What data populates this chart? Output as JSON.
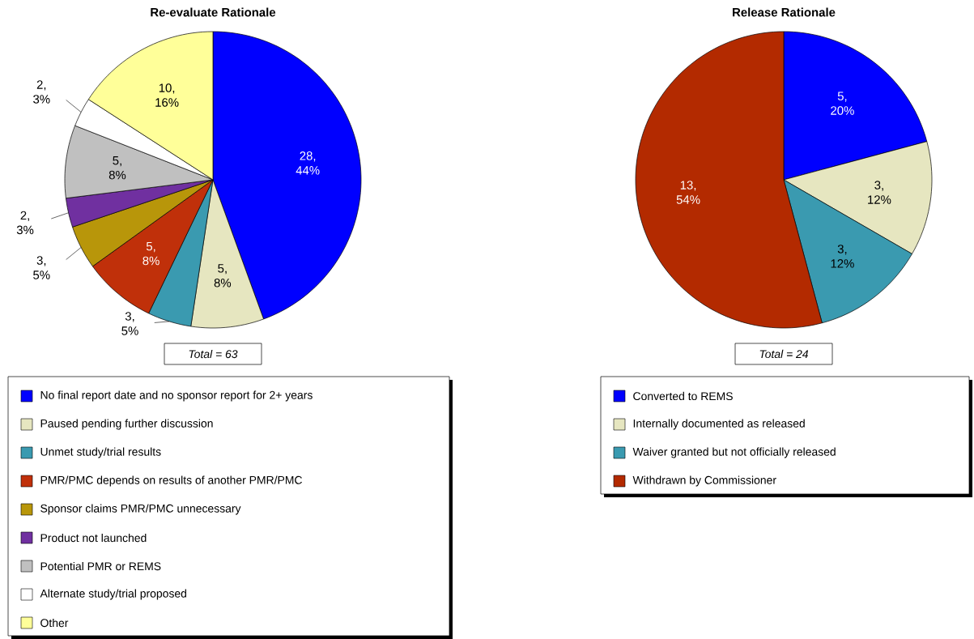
{
  "chart_data": [
    {
      "type": "pie",
      "title": "Re-evaluate Rationale",
      "legend": "bottom",
      "categories": [
        "No final report date and no sponsor report for 2+ years",
        "Paused pending further discussion",
        "Unmet study/trial results",
        "PMR/PMC depends on results of another PMR/PMC",
        "Sponsor claims PMR/PMC unnecessary",
        "Product not launched",
        "Potential PMR or REMS",
        "Alternate study/trial proposed",
        "Other"
      ],
      "values": [
        28,
        5,
        3,
        5,
        3,
        2,
        5,
        2,
        10
      ],
      "colors": [
        "#0000ff",
        "#e6e6c0",
        "#3a9ab0",
        "#c0300a",
        "#b8960a",
        "#7030a0",
        "#c0c0c0",
        "#ffffff",
        "#ffff99"
      ],
      "value_labels": [
        "28, 44%",
        "5, 8%",
        "3, 5%",
        "5, 8%",
        "3, 5%",
        "2, 3%",
        "5, 8%",
        "2, 3%",
        "10, 16%"
      ],
      "annotations": [
        "Total = 63"
      ]
    },
    {
      "type": "pie",
      "title": "Release Rationale",
      "legend": "bottom",
      "categories": [
        "Converted to REMS",
        "Internally documented as released",
        "Waiver granted but not officially released",
        "Withdrawn by Commissioner"
      ],
      "values": [
        5,
        3,
        3,
        13
      ],
      "colors": [
        "#0000ff",
        "#e6e6c0",
        "#3a9ab0",
        "#b32a00"
      ],
      "value_labels": [
        "5, 20%",
        "3, 12%",
        "3, 12%",
        "13, 54%"
      ],
      "annotations": [
        "Total = 24"
      ]
    }
  ]
}
